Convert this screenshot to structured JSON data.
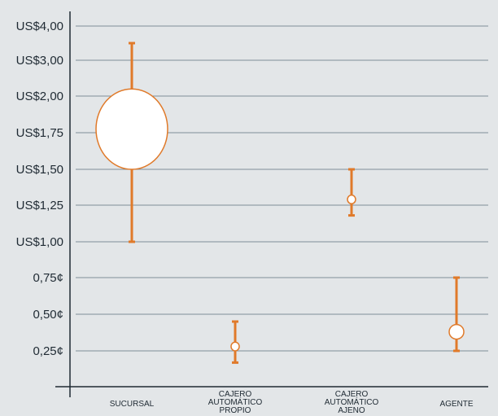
{
  "chart_data": {
    "type": "scatter",
    "title": "",
    "xlabel": "",
    "ylabel": "",
    "y_axis_note": "non-linear categorical scale",
    "y_ticks": [
      "0,25¢",
      "0,50¢",
      "0,75¢",
      "US$1,00",
      "US$1,25",
      "US$1,50",
      "US$1,75",
      "US$2,00",
      "US$3,00",
      "US$4,00"
    ],
    "grid": true,
    "categories": [
      {
        "name": "SUCURSAL",
        "lines": [
          "SUCURSAL"
        ]
      },
      {
        "name": "CAJERO AUTOMÁTICO PROPIO",
        "lines": [
          "CAJERO",
          "AUTOMÁTICO",
          "PROPIO"
        ]
      },
      {
        "name": "CAJERO AUTOMÁTICO AJENO",
        "lines": [
          "CAJERO",
          "AUTOMÁTICO",
          "AJENO"
        ]
      },
      {
        "name": "AGENTE",
        "lines": [
          "AGENTE"
        ]
      }
    ],
    "ranges": [
      {
        "category": "SUCURSAL",
        "low": 1.0,
        "high": 3.5,
        "ellipse_low": 1.5,
        "ellipse_high": 2.2
      },
      {
        "category": "CAJERO AUTOMÁTICO PROPIO",
        "low": 0.17,
        "high": 0.45,
        "ellipse_low": 0.25,
        "ellipse_high": 0.31
      },
      {
        "category": "CAJERO AUTOMÁTICO AJENO",
        "low": 1.18,
        "high": 1.5,
        "ellipse_low": 1.26,
        "ellipse_high": 1.32
      },
      {
        "category": "AGENTE",
        "low": 0.25,
        "high": 0.75,
        "ellipse_low": 0.33,
        "ellipse_high": 0.43
      }
    ]
  },
  "colors": {
    "background": "#e3e6e8",
    "accent": "#e07a2a",
    "grid": "#7f8f98",
    "axis": "#1f2a33",
    "ellipse_fill": "#ffffff"
  }
}
